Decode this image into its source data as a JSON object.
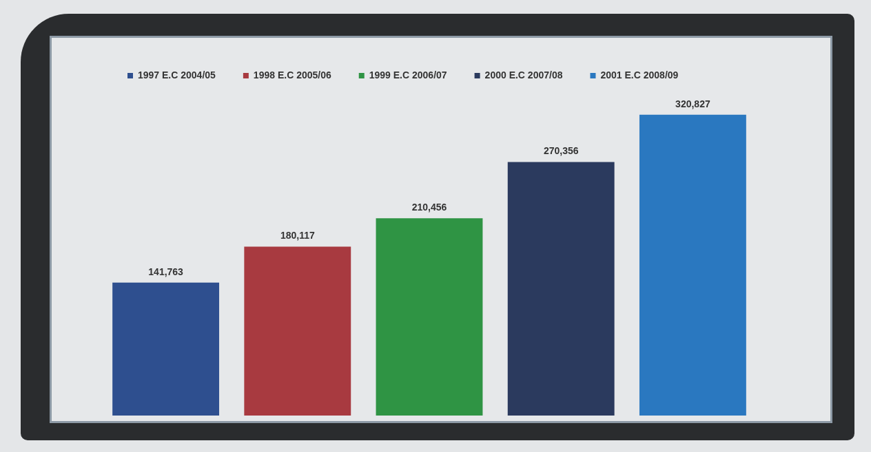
{
  "chart_data": {
    "type": "bar",
    "categories": [
      null
    ],
    "series": [
      {
        "name": "1997 E.C 2004/05",
        "color": "#2e4f8f",
        "values": [
          141763
        ],
        "value_labels": [
          "141,763"
        ]
      },
      {
        "name": "1998 E.C 2005/06",
        "color": "#a83a40",
        "values": [
          180117
        ],
        "value_labels": [
          "180,117"
        ]
      },
      {
        "name": "1999 E.C 2006/07",
        "color": "#2f9444",
        "values": [
          210456
        ],
        "value_labels": [
          "210,456"
        ]
      },
      {
        "name": "2000 E.C 2007/08",
        "color": "#2b3a5e",
        "values": [
          270356
        ],
        "value_labels": [
          "270,356"
        ]
      },
      {
        "name": "2001 E.C 2008/09",
        "color": "#2a78c0",
        "values": [
          320827
        ],
        "value_labels": [
          "320,827"
        ]
      }
    ],
    "grid": false,
    "legend": "top left",
    "tick_labels": false
  }
}
